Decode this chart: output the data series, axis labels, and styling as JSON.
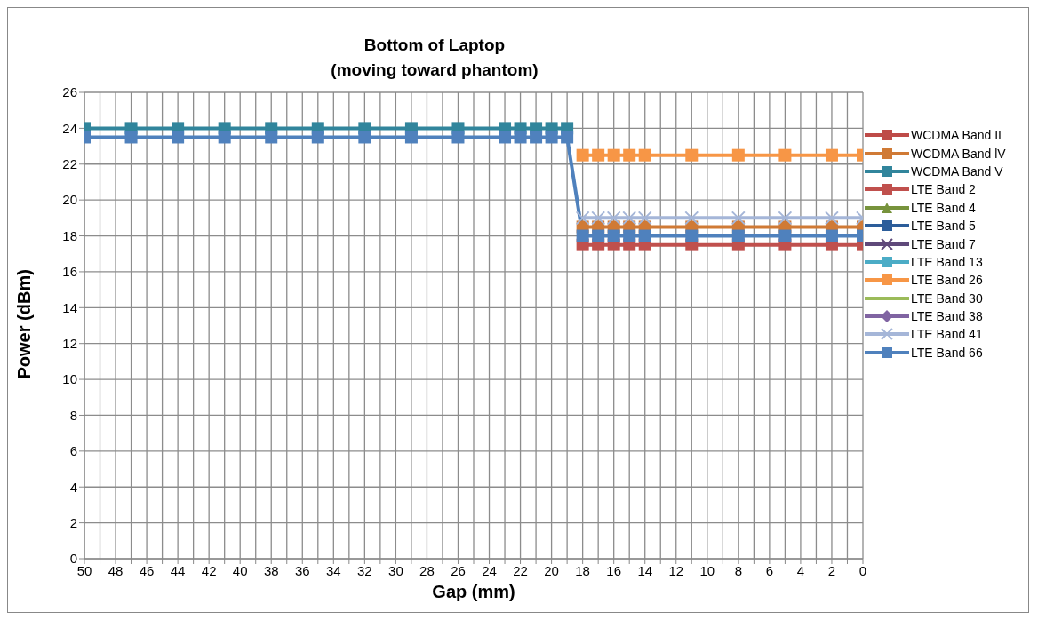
{
  "chart_data": {
    "type": "line",
    "title": "Bottom of Laptop",
    "subtitle": "(moving toward phantom)",
    "xlabel": "Gap (mm)",
    "ylabel": "Power (dBm)",
    "x": [
      50,
      47,
      44,
      41,
      38,
      35,
      32,
      29,
      26,
      23,
      22,
      21,
      20,
      19,
      18,
      17,
      16,
      15,
      14,
      11,
      8,
      5,
      2,
      0
    ],
    "series": [
      {
        "name": "WCDMA Band II",
        "color": "#be4b48",
        "marker": "square",
        "values": [
          null,
          null,
          null,
          null,
          null,
          null,
          null,
          null,
          null,
          null,
          null,
          null,
          null,
          null,
          null,
          null,
          null,
          null,
          null,
          null,
          null,
          null,
          null,
          null
        ]
      },
      {
        "name": "WCDMA Band lV",
        "color": "#d07a35",
        "marker": "square",
        "values": [
          null,
          null,
          null,
          null,
          null,
          null,
          null,
          null,
          null,
          null,
          null,
          null,
          null,
          null,
          18.5,
          18.5,
          18.5,
          18.5,
          18.5,
          18.5,
          18.5,
          18.5,
          18.5,
          18.5
        ]
      },
      {
        "name": "WCDMA Band V",
        "color": "#31859c",
        "marker": "square",
        "values": [
          24,
          24,
          24,
          24,
          24,
          24,
          24,
          24,
          24,
          24,
          24,
          24,
          24,
          24,
          null,
          null,
          null,
          null,
          null,
          null,
          null,
          null,
          null,
          null
        ]
      },
      {
        "name": "LTE Band 2",
        "color": "#c0504d",
        "marker": "square",
        "values": [
          null,
          null,
          null,
          null,
          null,
          null,
          null,
          null,
          null,
          null,
          null,
          null,
          null,
          null,
          17.5,
          17.5,
          17.5,
          17.5,
          17.5,
          17.5,
          17.5,
          17.5,
          17.5,
          17.5
        ]
      },
      {
        "name": "LTE Band 4",
        "color": "#77933c",
        "marker": "triangle",
        "values": [
          null,
          null,
          null,
          null,
          null,
          null,
          null,
          null,
          null,
          null,
          null,
          null,
          null,
          null,
          null,
          null,
          null,
          null,
          null,
          null,
          null,
          null,
          null,
          null
        ]
      },
      {
        "name": "LTE Band 5",
        "color": "#2c5d9a",
        "marker": "square",
        "values": [
          null,
          null,
          null,
          null,
          null,
          null,
          null,
          null,
          null,
          null,
          null,
          null,
          null,
          null,
          null,
          null,
          null,
          null,
          null,
          null,
          null,
          null,
          null,
          null
        ]
      },
      {
        "name": "LTE Band 7",
        "color": "#5f497a",
        "marker": "cross",
        "values": [
          null,
          null,
          null,
          null,
          null,
          null,
          null,
          null,
          null,
          null,
          null,
          null,
          null,
          null,
          null,
          null,
          null,
          null,
          null,
          null,
          null,
          null,
          null,
          null
        ]
      },
      {
        "name": "LTE Band 13",
        "color": "#4bacc6",
        "marker": "square",
        "values": [
          null,
          null,
          null,
          null,
          null,
          null,
          null,
          null,
          null,
          null,
          null,
          null,
          null,
          null,
          null,
          null,
          null,
          null,
          null,
          null,
          null,
          null,
          null,
          null
        ]
      },
      {
        "name": "LTE Band 26",
        "color": "#f79646",
        "marker": "square",
        "values": [
          null,
          null,
          null,
          null,
          null,
          null,
          null,
          null,
          null,
          null,
          null,
          null,
          null,
          null,
          22.5,
          22.5,
          22.5,
          22.5,
          22.5,
          22.5,
          22.5,
          22.5,
          22.5,
          22.5
        ]
      },
      {
        "name": "LTE Band 30",
        "color": "#9bbb59",
        "marker": "none",
        "values": [
          null,
          null,
          null,
          null,
          null,
          null,
          null,
          null,
          null,
          null,
          null,
          null,
          null,
          null,
          null,
          null,
          null,
          null,
          null,
          null,
          null,
          null,
          null,
          null
        ]
      },
      {
        "name": "LTE Band 38",
        "color": "#8064a2",
        "marker": "diamond",
        "values": [
          null,
          null,
          null,
          null,
          null,
          null,
          null,
          null,
          null,
          null,
          null,
          null,
          null,
          null,
          null,
          null,
          null,
          null,
          null,
          null,
          null,
          null,
          null,
          null
        ]
      },
      {
        "name": "LTE Band 41",
        "color": "#a5b6d8",
        "marker": "cross",
        "values": [
          null,
          null,
          null,
          null,
          null,
          null,
          null,
          null,
          null,
          null,
          null,
          null,
          null,
          null,
          19,
          19,
          19,
          19,
          19,
          19,
          19,
          19,
          19,
          19
        ]
      },
      {
        "name": "LTE Band 66",
        "color": "#4f81bd",
        "marker": "square",
        "values": [
          23.5,
          23.5,
          23.5,
          23.5,
          23.5,
          23.5,
          23.5,
          23.5,
          23.5,
          23.5,
          23.5,
          23.5,
          23.5,
          23.5,
          18,
          18,
          18,
          18,
          18,
          18,
          18,
          18,
          18,
          18
        ]
      }
    ],
    "xlim": [
      50,
      0
    ],
    "xticks": [
      50,
      {
        "value": 49,
        "label": null
      },
      48,
      {
        "value": 47,
        "label": null
      },
      46,
      {
        "value": 45,
        "label": null
      },
      44,
      {
        "value": 43,
        "label": null
      },
      42,
      {
        "value": 41,
        "label": null
      },
      40,
      {
        "value": 39,
        "label": null
      },
      38,
      {
        "value": 37,
        "label": null
      },
      36,
      {
        "value": 35,
        "label": null
      },
      34,
      {
        "value": 33,
        "label": null
      },
      32,
      {
        "value": 31,
        "label": null
      },
      30,
      {
        "value": 29,
        "label": null
      },
      28,
      {
        "value": 27,
        "label": null
      },
      26,
      {
        "value": 25,
        "label": null
      },
      24,
      {
        "value": 23,
        "label": null
      },
      22,
      {
        "value": 21,
        "label": null
      },
      20,
      {
        "value": 19,
        "label": null
      },
      18,
      {
        "value": 17,
        "label": null
      },
      16,
      {
        "value": 15,
        "label": null
      },
      14,
      {
        "value": 13,
        "label": null
      },
      12,
      {
        "value": 11,
        "label": null
      },
      10,
      {
        "value": 9,
        "label": null
      },
      8,
      {
        "value": 7,
        "label": null
      },
      6,
      {
        "value": 5,
        "label": null
      },
      4,
      {
        "value": 3,
        "label": null
      },
      2,
      {
        "value": 1,
        "label": null
      },
      0
    ],
    "ylim": [
      0,
      26
    ],
    "yticks": [
      0,
      2,
      4,
      6,
      8,
      10,
      12,
      14,
      16,
      18,
      20,
      22,
      24,
      26
    ],
    "grid": true,
    "legend": "right",
    "line_style": "solid"
  }
}
